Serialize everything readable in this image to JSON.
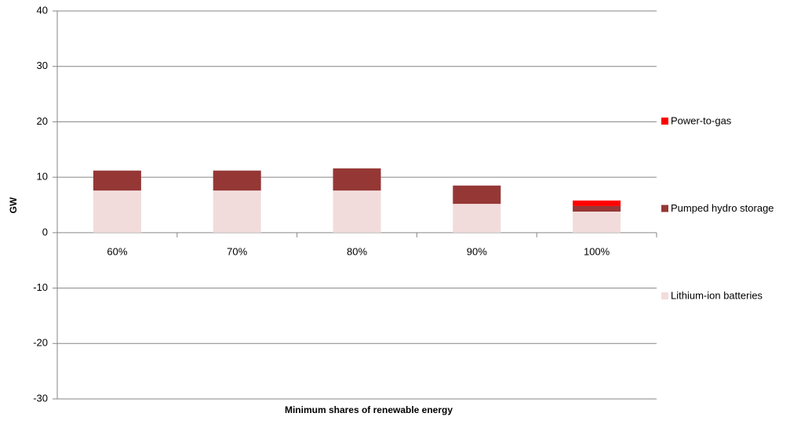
{
  "chart_data": {
    "type": "stacked-bar",
    "x_label": "Minimum shares of renewable energy",
    "y_label": "GW",
    "categories": [
      "60%",
      "70%",
      "80%",
      "90%",
      "100%"
    ],
    "series": [
      {
        "name": "Lithium-ion batteries",
        "color": "#f2dcdb",
        "values": [
          7.6,
          7.6,
          7.6,
          5.2,
          3.8
        ]
      },
      {
        "name": "Pumped hydro storage",
        "color": "#953735",
        "values": [
          3.6,
          3.6,
          4.0,
          3.3,
          1.0
        ]
      },
      {
        "name": "Power-to-gas",
        "color": "#ff0000",
        "values": [
          0,
          0,
          0,
          0,
          1.0
        ]
      }
    ],
    "ylim": [
      -30,
      40
    ],
    "yticks": [
      -30,
      -20,
      -10,
      0,
      10,
      20,
      30,
      40
    ],
    "grid": true
  }
}
